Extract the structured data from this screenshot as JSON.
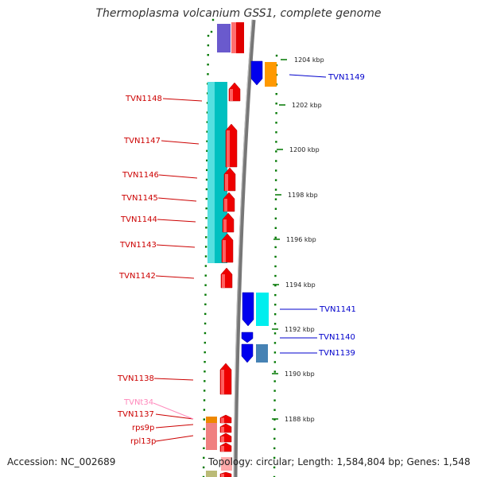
{
  "title": "Thermoplasma volcanium GSS1, complete genome",
  "footer": {
    "accession": "Accession: NC_002689",
    "stats": "Topology: circular; Length: 1,584,804 bp; Genes: 1,548"
  },
  "colors": {
    "forward_gene": "#ff0000",
    "reverse_gene": "#0000ff",
    "operon_forward": "#00c8c8",
    "operon_reverse": "#00e0e0",
    "label_forward": "#cc0000",
    "label_reverse": "#0000cc",
    "label_rna": "#ff88bb",
    "backbone": "#777777",
    "tick": "#007700"
  },
  "scale_labels": [
    "1204 kbp",
    "1202 kbp",
    "1200 kbp",
    "1198 kbp",
    "1196 kbp",
    "1194 kbp",
    "1192 kbp",
    "1190 kbp",
    "1188 kbp"
  ],
  "forward_labels": [
    "TVN1148",
    "TVN1147",
    "TVN1146",
    "TVN1145",
    "TVN1144",
    "TVN1143",
    "TVN1142",
    "TVN1138",
    "TVN1137",
    "rps9p",
    "rpl13p"
  ],
  "rna_labels": [
    "TVNt34"
  ],
  "reverse_labels": [
    "TVN1149",
    "TVN1141",
    "TVN1140",
    "TVN1139"
  ]
}
